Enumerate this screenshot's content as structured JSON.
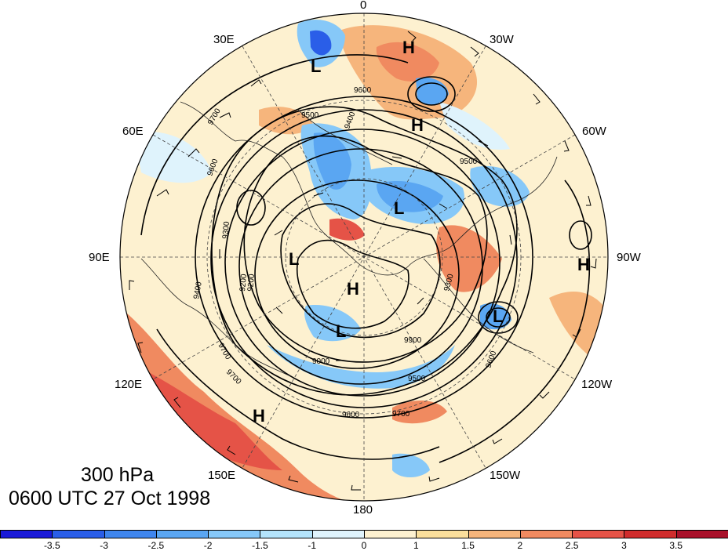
{
  "map": {
    "level": "300 hPa",
    "valid_time": "0600 UTC 27 Oct 1998",
    "longitude_labels": {
      "lon_0": "0",
      "lon_30e": "30E",
      "lon_30w": "30W",
      "lon_60e": "60E",
      "lon_60w": "60W",
      "lon_90e": "90E",
      "lon_90w": "90W",
      "lon_120e": "120E",
      "lon_120w": "120W",
      "lon_150e": "150E",
      "lon_150w": "150W",
      "lon_180": "180"
    },
    "pressure_centers": [
      "L",
      "H",
      "H",
      "L",
      "L",
      "L",
      "H",
      "L",
      "H",
      "H"
    ],
    "contour_labels": [
      "9600",
      "9700",
      "9500",
      "9400",
      "9500",
      "9600",
      "9300",
      "9200",
      "9700",
      "9900",
      "9000",
      "9500",
      "9600",
      "9700",
      "9200",
      "9600",
      "9700",
      "9300",
      "9400"
    ]
  },
  "colorbar": {
    "labels": [
      "-3.5",
      "-3",
      "-2.5",
      "-2",
      "-1.5",
      "-1",
      "0",
      "1",
      "1.5",
      "2",
      "2.5",
      "3",
      "3.5"
    ],
    "colors": [
      "#1a1ad8",
      "#2a5ee8",
      "#3f86ee",
      "#5aa6f2",
      "#86c8f8",
      "#b4e4fb",
      "#dff3fc",
      "#fdf1d0",
      "#fadf9c",
      "#f6b57c",
      "#f08a60",
      "#e55347",
      "#d02c2c",
      "#a9102a"
    ]
  }
}
